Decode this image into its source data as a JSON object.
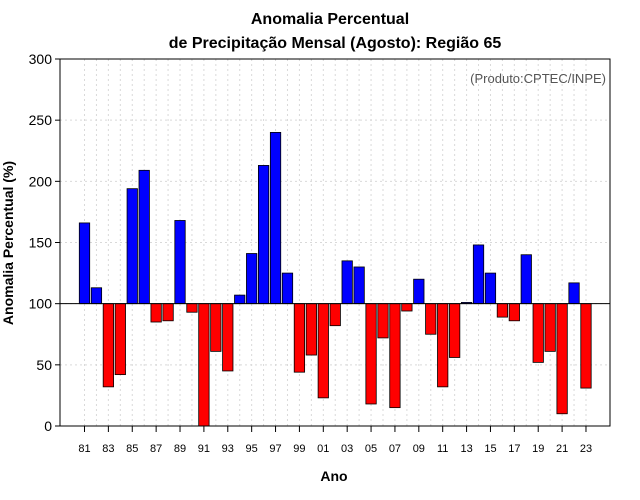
{
  "chart_data": {
    "type": "bar",
    "title_line1": "Anomalia Percentual",
    "title_line2": "de Precipitação Mensal (Agosto): Região 65",
    "credit": "(Produto:CPTEC/INPE)",
    "xlabel": "Ano",
    "ylabel": "Anomalia Percentual (%)",
    "ylim": [
      0,
      300
    ],
    "yticks": [
      "0",
      "50",
      "100",
      "150",
      "200",
      "250",
      "300"
    ],
    "baseline": 100,
    "grid": true,
    "color_above": "#0000ff",
    "color_below": "#ff0000",
    "categories": [
      "81",
      "82",
      "83",
      "84",
      "85",
      "86",
      "87",
      "88",
      "89",
      "90",
      "91",
      "92",
      "93",
      "94",
      "95",
      "96",
      "97",
      "98",
      "99",
      "00",
      "01",
      "02",
      "03",
      "04",
      "05",
      "06",
      "07",
      "08",
      "09",
      "10",
      "11",
      "12",
      "13",
      "14",
      "15",
      "16",
      "17",
      "18",
      "19",
      "20",
      "21",
      "22",
      "23"
    ],
    "xtick_labels": [
      "81",
      "83",
      "85",
      "87",
      "89",
      "91",
      "93",
      "95",
      "97",
      "99",
      "01",
      "03",
      "05",
      "07",
      "09",
      "11",
      "13",
      "15",
      "17",
      "19",
      "21",
      "23"
    ],
    "values": [
      166,
      113,
      32,
      42,
      194,
      209,
      85,
      86,
      168,
      93,
      0,
      61,
      45,
      107,
      141,
      213,
      240,
      125,
      44,
      58,
      23,
      82,
      135,
      130,
      18,
      72,
      15,
      94,
      120,
      75,
      32,
      56,
      101,
      148,
      125,
      89,
      86,
      140,
      52,
      61,
      10,
      117,
      31
    ]
  }
}
